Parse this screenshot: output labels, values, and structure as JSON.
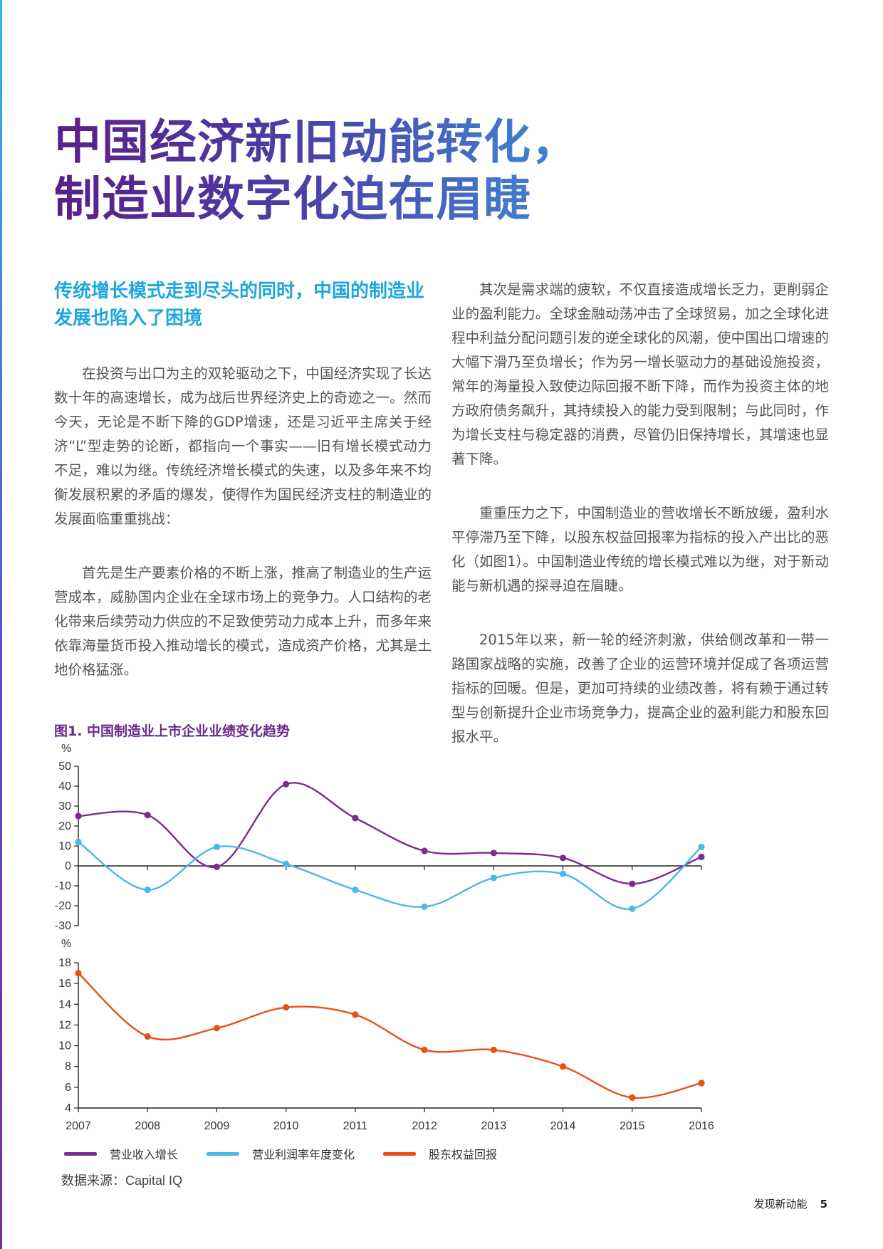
{
  "headline": {
    "line1": "中国经济新旧动能转化，",
    "line2": "制造业数字化迫在眉睫"
  },
  "left_column": {
    "subhead": "传统增长模式走到尽头的同时，中国的制造业发展也陷入了困境",
    "paragraphs": [
      "在投资与出口为主的双轮驱动之下，中国经济实现了长达数十年的高速增长，成为战后世界经济史上的奇迹之一。然而今天，无论是不断下降的GDP增速，还是习近平主席关于经济“L”型走势的论断，都指向一个事实——旧有增长模式动力不足，难以为继。传统经济增长模式的失速，以及多年来不均衡发展积累的矛盾的爆发，使得作为国民经济支柱的制造业的发展面临重重挑战：",
      "首先是生产要素价格的不断上涨，推高了制造业的生产运营成本，威胁国内企业在全球市场上的竞争力。人口结构的老化带来后续劳动力供应的不足致使劳动力成本上升，而多年来依靠海量货币投入推动增长的模式，造成资产价格，尤其是土地价格猛涨。"
    ]
  },
  "right_column": {
    "paragraphs": [
      "其次是需求端的疲软，不仅直接造成增长乏力，更削弱企业的盈利能力。全球金融动荡冲击了全球贸易，加之全球化进程中利益分配问题引发的逆全球化的风潮，使中国出口增速的大幅下滑乃至负增长；作为另一增长驱动力的基础设施投资，常年的海量投入致使边际回报不断下降，而作为投资主体的地方政府债务飙升，其持续投入的能力受到限制；与此同时，作为增长支柱与稳定器的消费，尽管仍旧保持增长，其增速也显著下降。",
      "重重压力之下，中国制造业的营收增长不断放缓，盈利水平停滞乃至下降，以股东权益回报率为指标的投入产出比的恶化（如图1）。中国制造业传统的增长模式难以为继，对于新动能与新机遇的探寻迫在眉睫。",
      "2015年以来，新一轮的经济刺激，供给侧改革和一带一路国家战略的实施，改善了企业的运营环境并促成了各项运营指标的回暖。但是，更加可持续的业绩改善，将有赖于通过转型与创新提升企业市场竞争力，提高企业的盈利能力和股东回报水平。"
    ]
  },
  "figure": {
    "title": "图1. 中国制造业上市企业业绩变化趋势",
    "source": "数据来源：Capital IQ"
  },
  "chart_data": [
    {
      "type": "line",
      "title": "图1. 中国制造业上市企业业绩变化趋势",
      "ylabel": "%",
      "ylim": [
        -30,
        50
      ],
      "yticks": [
        50,
        40,
        30,
        20,
        10,
        0,
        -10,
        -20,
        -30
      ],
      "ytick_labels": [
        "50",
        "40",
        "30",
        "20",
        "10",
        "0",
        "-10",
        "-20",
        "-30"
      ],
      "x": [
        "2007",
        "2008",
        "2009",
        "2010",
        "2011",
        "2012",
        "2013",
        "2014",
        "2015",
        "2016"
      ],
      "series": [
        {
          "name": "营业收入增长",
          "color": "#7b2d8e",
          "values": [
            25,
            25.5,
            -0.5,
            41,
            24,
            7.5,
            6.5,
            4,
            -9,
            4.5
          ]
        },
        {
          "name": "营业利润率年度变化",
          "color": "#4ab8e8",
          "values": [
            12,
            -12,
            9.5,
            1,
            -12,
            -20.5,
            -6,
            -4,
            -21.5,
            9.5
          ]
        }
      ]
    },
    {
      "type": "line",
      "ylabel": "%",
      "ylim": [
        4,
        18
      ],
      "yticks": [
        18,
        16,
        14,
        12,
        10,
        8,
        6,
        4
      ],
      "ytick_labels": [
        "18",
        "16",
        "14",
        "12",
        "10",
        "8",
        "6",
        "4"
      ],
      "x": [
        "2007",
        "2008",
        "2009",
        "2010",
        "2011",
        "2012",
        "2013",
        "2014",
        "2015",
        "2016"
      ],
      "series": [
        {
          "name": "股东权益回报",
          "color": "#e8501a",
          "values": [
            17,
            10.9,
            11.7,
            13.7,
            13,
            9.6,
            9.6,
            8,
            5,
            6.4
          ]
        }
      ]
    }
  ],
  "legend": [
    {
      "label": "营业收入增长",
      "color": "#7b2d8e"
    },
    {
      "label": "营业利润率年度变化",
      "color": "#4ab8e8"
    },
    {
      "label": "股东权益回报",
      "color": "#e8501a"
    }
  ],
  "footer": {
    "section": "发现新动能",
    "page_number": "5"
  }
}
